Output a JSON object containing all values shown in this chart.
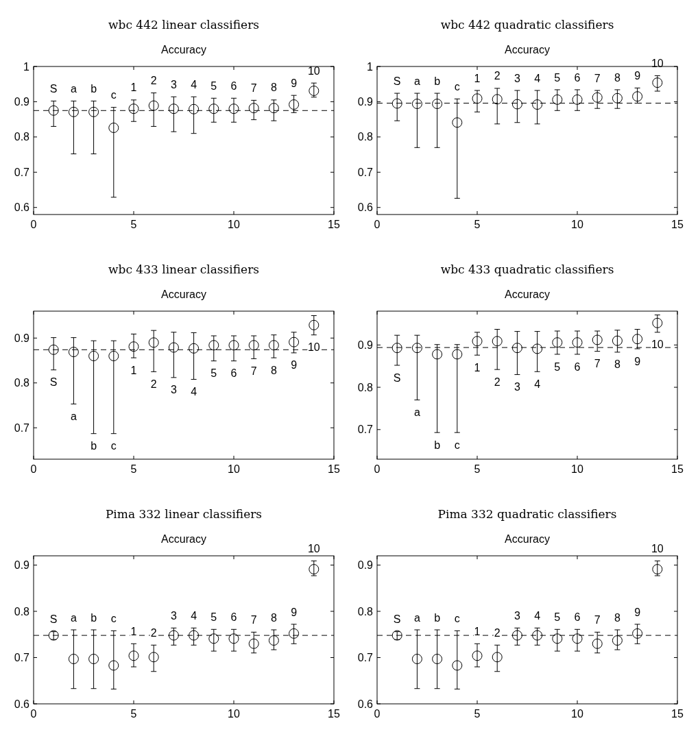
{
  "chart_data": [
    {
      "type": "scatter",
      "title": "wbc 442 linear classifiers",
      "subtitle": "Accuracy",
      "x": [
        1,
        2,
        3,
        4,
        5,
        6,
        7,
        8,
        9,
        10,
        11,
        12,
        13,
        14
      ],
      "xlim": [
        0,
        15
      ],
      "xticks": [
        0,
        5,
        10,
        15
      ],
      "ylim": [
        0.58,
        1
      ],
      "yticks": [
        0.6,
        0.7,
        0.8,
        0.9,
        1
      ],
      "marker": "circle",
      "series": [
        {
          "color": "#000000",
          "values": [
            0.875,
            0.871,
            0.871,
            0.826,
            0.88,
            0.889,
            0.88,
            0.879,
            0.88,
            0.88,
            0.882,
            0.882,
            0.892,
            0.931
          ],
          "errors": [
            [
              0.83,
              0.902
            ],
            [
              0.752,
              0.902
            ],
            [
              0.752,
              0.902
            ],
            [
              0.629,
              0.884
            ],
            [
              0.844,
              0.905
            ],
            [
              0.83,
              0.925
            ],
            [
              0.815,
              0.914
            ],
            [
              0.81,
              0.914
            ],
            [
              0.842,
              0.91
            ],
            [
              0.842,
              0.91
            ],
            [
              0.849,
              0.904
            ],
            [
              0.846,
              0.905
            ],
            [
              0.869,
              0.918
            ],
            [
              0.913,
              0.953
            ]
          ]
        }
      ],
      "ref_lines": [
        {
          "axis": "y",
          "value": 0.875,
          "color": "#000000",
          "line_style": "dashed"
        }
      ],
      "annotations": [
        "S",
        "a",
        "b",
        "c",
        "1",
        "2",
        "3",
        "4",
        "5",
        "6",
        "7",
        "8",
        "9",
        "10"
      ]
    },
    {
      "type": "scatter",
      "title": "wbc 442 quadratic classifiers",
      "subtitle": "Accuracy",
      "x": [
        1,
        2,
        3,
        4,
        5,
        6,
        7,
        8,
        9,
        10,
        11,
        12,
        13,
        14
      ],
      "xlim": [
        0,
        15
      ],
      "xticks": [
        0,
        5,
        10,
        15
      ],
      "ylim": [
        0.58,
        1
      ],
      "yticks": [
        0.6,
        0.7,
        0.8,
        0.9,
        1
      ],
      "marker": "circle",
      "series": [
        {
          "color": "#000000",
          "values": [
            0.895,
            0.894,
            0.894,
            0.841,
            0.909,
            0.907,
            0.893,
            0.892,
            0.906,
            0.906,
            0.912,
            0.91,
            0.915,
            0.954
          ],
          "errors": [
            [
              0.846,
              0.924
            ],
            [
              0.77,
              0.924
            ],
            [
              0.77,
              0.924
            ],
            [
              0.626,
              0.908
            ],
            [
              0.871,
              0.932
            ],
            [
              0.837,
              0.938
            ],
            [
              0.841,
              0.932
            ],
            [
              0.837,
              0.932
            ],
            [
              0.875,
              0.934
            ],
            [
              0.875,
              0.934
            ],
            [
              0.881,
              0.932
            ],
            [
              0.881,
              0.934
            ],
            [
              0.896,
              0.939
            ],
            [
              0.93,
              0.974
            ]
          ]
        }
      ],
      "ref_lines": [
        {
          "axis": "y",
          "value": 0.896,
          "color": "#000000",
          "line_style": "dashed"
        }
      ],
      "annotations": [
        "S",
        "a",
        "b",
        "c",
        "1",
        "2",
        "3",
        "4",
        "5",
        "6",
        "7",
        "8",
        "9",
        "10"
      ]
    },
    {
      "type": "scatter",
      "title": "wbc 433 linear classifiers",
      "subtitle": "Accuracy",
      "x": [
        1,
        2,
        3,
        4,
        5,
        6,
        7,
        8,
        9,
        10,
        11,
        12,
        13,
        14
      ],
      "xlim": [
        0,
        15
      ],
      "xticks": [
        0,
        5,
        10,
        15
      ],
      "ylim": [
        0.63,
        0.96
      ],
      "yticks": [
        0.7,
        0.8,
        0.9
      ],
      "marker": "circle",
      "series": [
        {
          "color": "#000000",
          "values": [
            0.874,
            0.869,
            0.86,
            0.86,
            0.881,
            0.89,
            0.879,
            0.877,
            0.884,
            0.884,
            0.884,
            0.884,
            0.891,
            0.929
          ],
          "errors": [
            [
              0.829,
              0.901
            ],
            [
              0.753,
              0.901
            ],
            [
              0.687,
              0.894
            ],
            [
              0.687,
              0.894
            ],
            [
              0.856,
              0.909
            ],
            [
              0.825,
              0.917
            ],
            [
              0.812,
              0.913
            ],
            [
              0.808,
              0.912
            ],
            [
              0.849,
              0.905
            ],
            [
              0.849,
              0.905
            ],
            [
              0.854,
              0.905
            ],
            [
              0.856,
              0.907
            ],
            [
              0.867,
              0.913
            ],
            [
              0.907,
              0.95
            ]
          ]
        }
      ],
      "ref_lines": [
        {
          "axis": "y",
          "value": 0.874,
          "color": "#000000",
          "line_style": "dashed"
        }
      ],
      "annotations": [
        "S",
        "a",
        "b",
        "c",
        "1",
        "2",
        "3",
        "4",
        "5",
        "6",
        "7",
        "8",
        "9",
        "10"
      ]
    },
    {
      "type": "scatter",
      "title": "wbc 433 quadratic classifiers",
      "subtitle": "Accuracy",
      "x": [
        1,
        2,
        3,
        4,
        5,
        6,
        7,
        8,
        9,
        10,
        11,
        12,
        13,
        14
      ],
      "xlim": [
        0,
        15
      ],
      "xticks": [
        0,
        5,
        10,
        15
      ],
      "ylim": [
        0.63,
        0.98
      ],
      "yticks": [
        0.7,
        0.8,
        0.9
      ],
      "marker": "circle",
      "series": [
        {
          "color": "#000000",
          "values": [
            0.893,
            0.893,
            0.878,
            0.878,
            0.909,
            0.909,
            0.893,
            0.891,
            0.906,
            0.906,
            0.912,
            0.91,
            0.914,
            0.952
          ],
          "errors": [
            [
              0.852,
              0.923
            ],
            [
              0.77,
              0.923
            ],
            [
              0.693,
              0.901
            ],
            [
              0.693,
              0.901
            ],
            [
              0.876,
              0.93
            ],
            [
              0.842,
              0.937
            ],
            [
              0.83,
              0.932
            ],
            [
              0.837,
              0.932
            ],
            [
              0.878,
              0.933
            ],
            [
              0.878,
              0.933
            ],
            [
              0.885,
              0.933
            ],
            [
              0.883,
              0.935
            ],
            [
              0.891,
              0.937
            ],
            [
              0.93,
              0.971
            ]
          ]
        }
      ],
      "ref_lines": [
        {
          "axis": "y",
          "value": 0.894,
          "color": "#000000",
          "line_style": "dashed"
        }
      ],
      "annotations": [
        "S",
        "a",
        "b",
        "c",
        "1",
        "2",
        "3",
        "4",
        "5",
        "6",
        "7",
        "8",
        "9",
        "10"
      ]
    },
    {
      "type": "scatter",
      "title": "Pima 332 linear classifiers",
      "subtitle": "Accuracy",
      "x": [
        1,
        2,
        3,
        4,
        5,
        6,
        7,
        8,
        9,
        10,
        11,
        12,
        13,
        14
      ],
      "xlim": [
        0,
        15
      ],
      "xticks": [
        0,
        5,
        10,
        15
      ],
      "ylim": [
        0.6,
        0.92
      ],
      "yticks": [
        0.6,
        0.7,
        0.8,
        0.9
      ],
      "marker": "circle",
      "series": [
        {
          "color": "#000000",
          "values": [
            0.748,
            0.697,
            0.697,
            0.683,
            0.704,
            0.701,
            0.748,
            0.748,
            0.741,
            0.741,
            0.73,
            0.737,
            0.752,
            0.891
          ],
          "errors": [
            [
              0.739,
              0.756
            ],
            [
              0.633,
              0.76
            ],
            [
              0.633,
              0.76
            ],
            [
              0.632,
              0.758
            ],
            [
              0.68,
              0.73
            ],
            [
              0.67,
              0.727
            ],
            [
              0.727,
              0.764
            ],
            [
              0.727,
              0.764
            ],
            [
              0.714,
              0.761
            ],
            [
              0.714,
              0.761
            ],
            [
              0.71,
              0.755
            ],
            [
              0.717,
              0.76
            ],
            [
              0.73,
              0.772
            ],
            [
              0.877,
              0.909
            ]
          ]
        }
      ],
      "ref_lines": [
        {
          "axis": "y",
          "value": 0.748,
          "color": "#000000",
          "line_style": "dashed"
        }
      ],
      "annotations": [
        "S",
        "a",
        "b",
        "c",
        "1",
        "2",
        "3",
        "4",
        "5",
        "6",
        "7",
        "8",
        "9",
        "10"
      ]
    },
    {
      "type": "scatter",
      "title": "Pima 332 quadratic classifiers",
      "subtitle": "Accuracy",
      "x": [
        1,
        2,
        3,
        4,
        5,
        6,
        7,
        8,
        9,
        10,
        11,
        12,
        13,
        14
      ],
      "xlim": [
        0,
        15
      ],
      "xticks": [
        0,
        5,
        10,
        15
      ],
      "ylim": [
        0.6,
        0.92
      ],
      "yticks": [
        0.6,
        0.7,
        0.8,
        0.9
      ],
      "marker": "circle",
      "series": [
        {
          "color": "#000000",
          "values": [
            0.748,
            0.697,
            0.697,
            0.683,
            0.704,
            0.701,
            0.748,
            0.748,
            0.741,
            0.741,
            0.73,
            0.737,
            0.752,
            0.891
          ],
          "errors": [
            [
              0.739,
              0.756
            ],
            [
              0.633,
              0.76
            ],
            [
              0.633,
              0.76
            ],
            [
              0.632,
              0.758
            ],
            [
              0.68,
              0.73
            ],
            [
              0.67,
              0.727
            ],
            [
              0.727,
              0.764
            ],
            [
              0.727,
              0.764
            ],
            [
              0.714,
              0.761
            ],
            [
              0.714,
              0.761
            ],
            [
              0.71,
              0.755
            ],
            [
              0.717,
              0.76
            ],
            [
              0.73,
              0.772
            ],
            [
              0.877,
              0.909
            ]
          ]
        }
      ],
      "ref_lines": [
        {
          "axis": "y",
          "value": 0.748,
          "color": "#000000",
          "line_style": "dashed"
        }
      ],
      "annotations": [
        "S",
        "a",
        "b",
        "c",
        "1",
        "2",
        "3",
        "4",
        "5",
        "6",
        "7",
        "8",
        "9",
        "10"
      ]
    }
  ]
}
